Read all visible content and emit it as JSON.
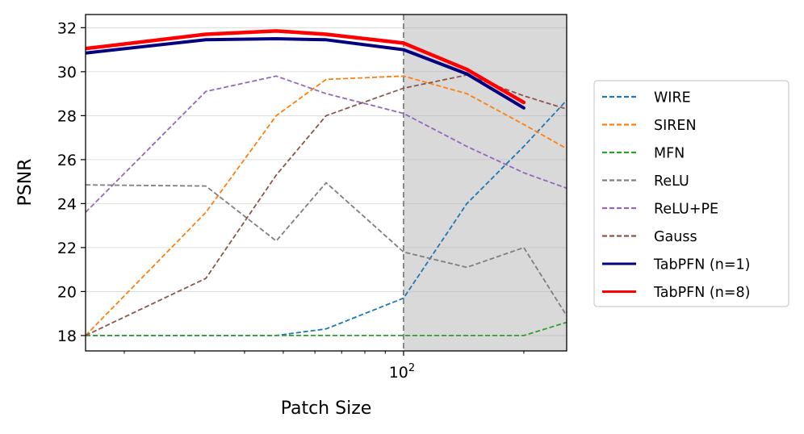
{
  "chart_data": {
    "type": "line",
    "xlabel": "Patch Size",
    "ylabel": "PSNR",
    "xscale": "log",
    "xlim": [
      16,
      256
    ],
    "ylim": [
      17.3,
      32.6
    ],
    "x_tick_labels": [
      {
        "value": 100,
        "base": "10",
        "exp": "2"
      }
    ],
    "y_ticks": [
      18,
      20,
      22,
      24,
      26,
      28,
      30,
      32
    ],
    "grid": "horizontal",
    "legend_position": "right",
    "shaded_region": {
      "x_from": 100,
      "x_to": 256,
      "color": "#d9d9d9"
    },
    "vline": {
      "x": 100,
      "color": "#808080"
    },
    "series": [
      {
        "name": "WIRE",
        "color": "#1f77b4",
        "style": "dashed",
        "x": [
          16,
          32,
          48,
          64,
          100,
          144,
          200,
          256
        ],
        "y": [
          18.0,
          18.0,
          18.0,
          18.3,
          19.7,
          24.0,
          26.6,
          28.7
        ]
      },
      {
        "name": "SIREN",
        "color": "#ff7f0e",
        "style": "dashed",
        "x": [
          16,
          32,
          48,
          64,
          100,
          144,
          200,
          256
        ],
        "y": [
          18.0,
          23.6,
          28.0,
          29.65,
          29.8,
          29.0,
          27.6,
          26.5
        ]
      },
      {
        "name": "MFN",
        "color": "#2ca02c",
        "style": "dashed",
        "x": [
          16,
          32,
          48,
          64,
          100,
          144,
          200,
          256
        ],
        "y": [
          18.0,
          18.0,
          18.0,
          18.0,
          18.0,
          18.0,
          18.0,
          18.6
        ]
      },
      {
        "name": "ReLU",
        "color": "#7f7f7f",
        "style": "dashed",
        "x": [
          16,
          32,
          48,
          64,
          100,
          144,
          200,
          256
        ],
        "y": [
          24.85,
          24.8,
          22.3,
          24.95,
          21.8,
          21.1,
          22.0,
          18.9
        ]
      },
      {
        "name": "ReLU+PE",
        "color": "#9467bd",
        "style": "dashed",
        "x": [
          16,
          32,
          48,
          64,
          100,
          144,
          200,
          256
        ],
        "y": [
          23.6,
          29.1,
          29.8,
          29.0,
          28.1,
          26.6,
          25.4,
          24.7
        ]
      },
      {
        "name": "Gauss",
        "color": "#8c564b",
        "style": "dashed",
        "x": [
          16,
          32,
          48,
          64,
          100,
          144,
          200,
          256
        ],
        "y": [
          18.0,
          20.6,
          25.3,
          28.0,
          29.25,
          29.85,
          28.9,
          28.3
        ]
      },
      {
        "name": "TabPFN (n=1)",
        "color": "#000080",
        "style": "solid",
        "x": [
          16,
          32,
          48,
          64,
          100,
          144,
          200
        ],
        "y": [
          30.85,
          31.45,
          31.5,
          31.45,
          31.0,
          29.9,
          28.35
        ]
      },
      {
        "name": "TabPFN (n=8)",
        "color": "#ff0000",
        "style": "solid",
        "x": [
          16,
          32,
          48,
          64,
          100,
          144,
          200
        ],
        "y": [
          31.05,
          31.7,
          31.85,
          31.7,
          31.3,
          30.1,
          28.6
        ]
      }
    ]
  }
}
